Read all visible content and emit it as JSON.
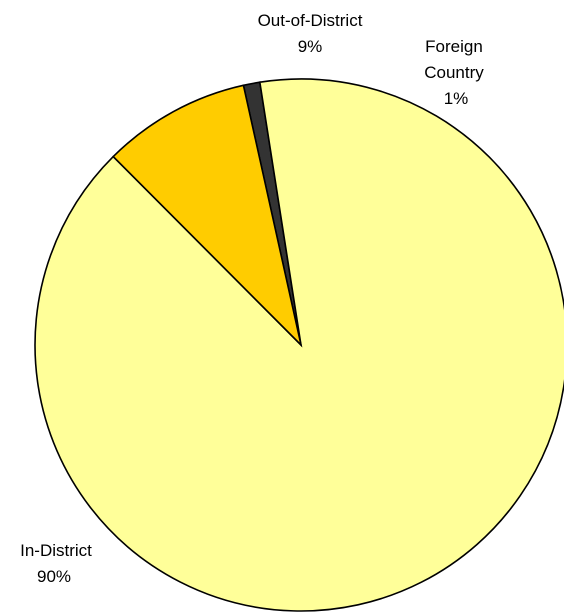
{
  "chart_data": {
    "type": "pie",
    "title": "",
    "start_angle_deg": -12.5,
    "direction": "clockwise",
    "slices": [
      {
        "label": [
          "Foreign",
          "Country"
        ],
        "percent_label": "1%",
        "value": 1,
        "color": "#333333"
      },
      {
        "label": [
          "In-District"
        ],
        "percent_label": "90%",
        "value": 90,
        "color": "#ffff99"
      },
      {
        "label": [
          "Out-of-District"
        ],
        "percent_label": "9%",
        "value": 9,
        "color": "#ffcc00"
      }
    ],
    "legend": "none"
  }
}
